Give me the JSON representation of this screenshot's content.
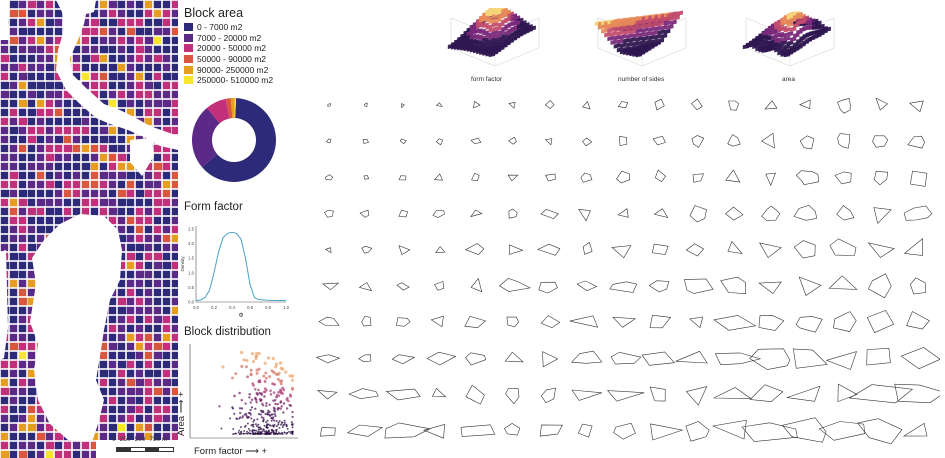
{
  "colors": {
    "c1": "#2d2a7a",
    "c2": "#5a2a86",
    "c3": "#c1307a",
    "c4": "#d9573f",
    "c5": "#e69d22",
    "c6": "#f7e62b",
    "line": "#4aa3c5"
  },
  "legend": {
    "title": "Block area",
    "items": [
      {
        "label": "0 - 7000 m2",
        "color": "#2d2a7a"
      },
      {
        "label": "7000 - 20000 m2",
        "color": "#5a2a86"
      },
      {
        "label": "20000 - 50000 m2",
        "color": "#c1307a"
      },
      {
        "label": "50000 - 90000 m2",
        "color": "#d9573f"
      },
      {
        "label": "90000- 250000 m2",
        "color": "#e69d22"
      },
      {
        "label": "250000- 510000 m2",
        "color": "#f7e62b"
      }
    ]
  },
  "scale_bar": {
    "labels": [
      "0",
      "250",
      "500",
      "750 m"
    ]
  },
  "form_factor": {
    "title": "Form factor",
    "xlabel": "Φ",
    "ylabel": "Density"
  },
  "block_distribution": {
    "title": "Block distribution",
    "xlabel": "Form factor  ⟶ +",
    "ylabel": "Area ⟶ +"
  },
  "surfaces": {
    "labels": [
      "form factor",
      "number of sides",
      "area"
    ]
  },
  "chart_data": [
    {
      "type": "pie",
      "title": "",
      "labels": [
        "0 - 7000 m2",
        "7000 - 20000 m2",
        "20000 - 50000 m2",
        "50000 - 90000 m2",
        "90000- 250000 m2",
        "250000- 510000 m2"
      ],
      "values": [
        63,
        25,
        8,
        2,
        1.5,
        0.5
      ],
      "donut": true
    },
    {
      "type": "line",
      "title": "Form factor",
      "xlabel": "Φ",
      "ylabel": "Density",
      "x": [
        0.0,
        0.05,
        0.1,
        0.15,
        0.2,
        0.25,
        0.3,
        0.35,
        0.4,
        0.45,
        0.5,
        0.55,
        0.6,
        0.65,
        0.7,
        0.8,
        0.9,
        1.0
      ],
      "y": [
        0.05,
        0.07,
        0.15,
        0.4,
        1.0,
        1.7,
        2.2,
        2.35,
        2.38,
        2.35,
        2.15,
        1.5,
        0.6,
        0.15,
        0.08,
        0.06,
        0.05,
        0.05
      ],
      "xticks": [
        "0.0",
        "0.2",
        "0.4",
        "0.6",
        "0.8",
        "1.0"
      ],
      "yticks": [
        "0.0",
        "0.5",
        "1.0",
        "1.5",
        "2.0",
        "2.5"
      ],
      "xlim": [
        0,
        1
      ],
      "ylim": [
        0,
        2.6
      ]
    },
    {
      "type": "scatter",
      "title": "Block distribution",
      "xlabel": "Form factor  ⟶ +",
      "ylabel": "Area ⟶ +",
      "n_points": 400
    }
  ]
}
